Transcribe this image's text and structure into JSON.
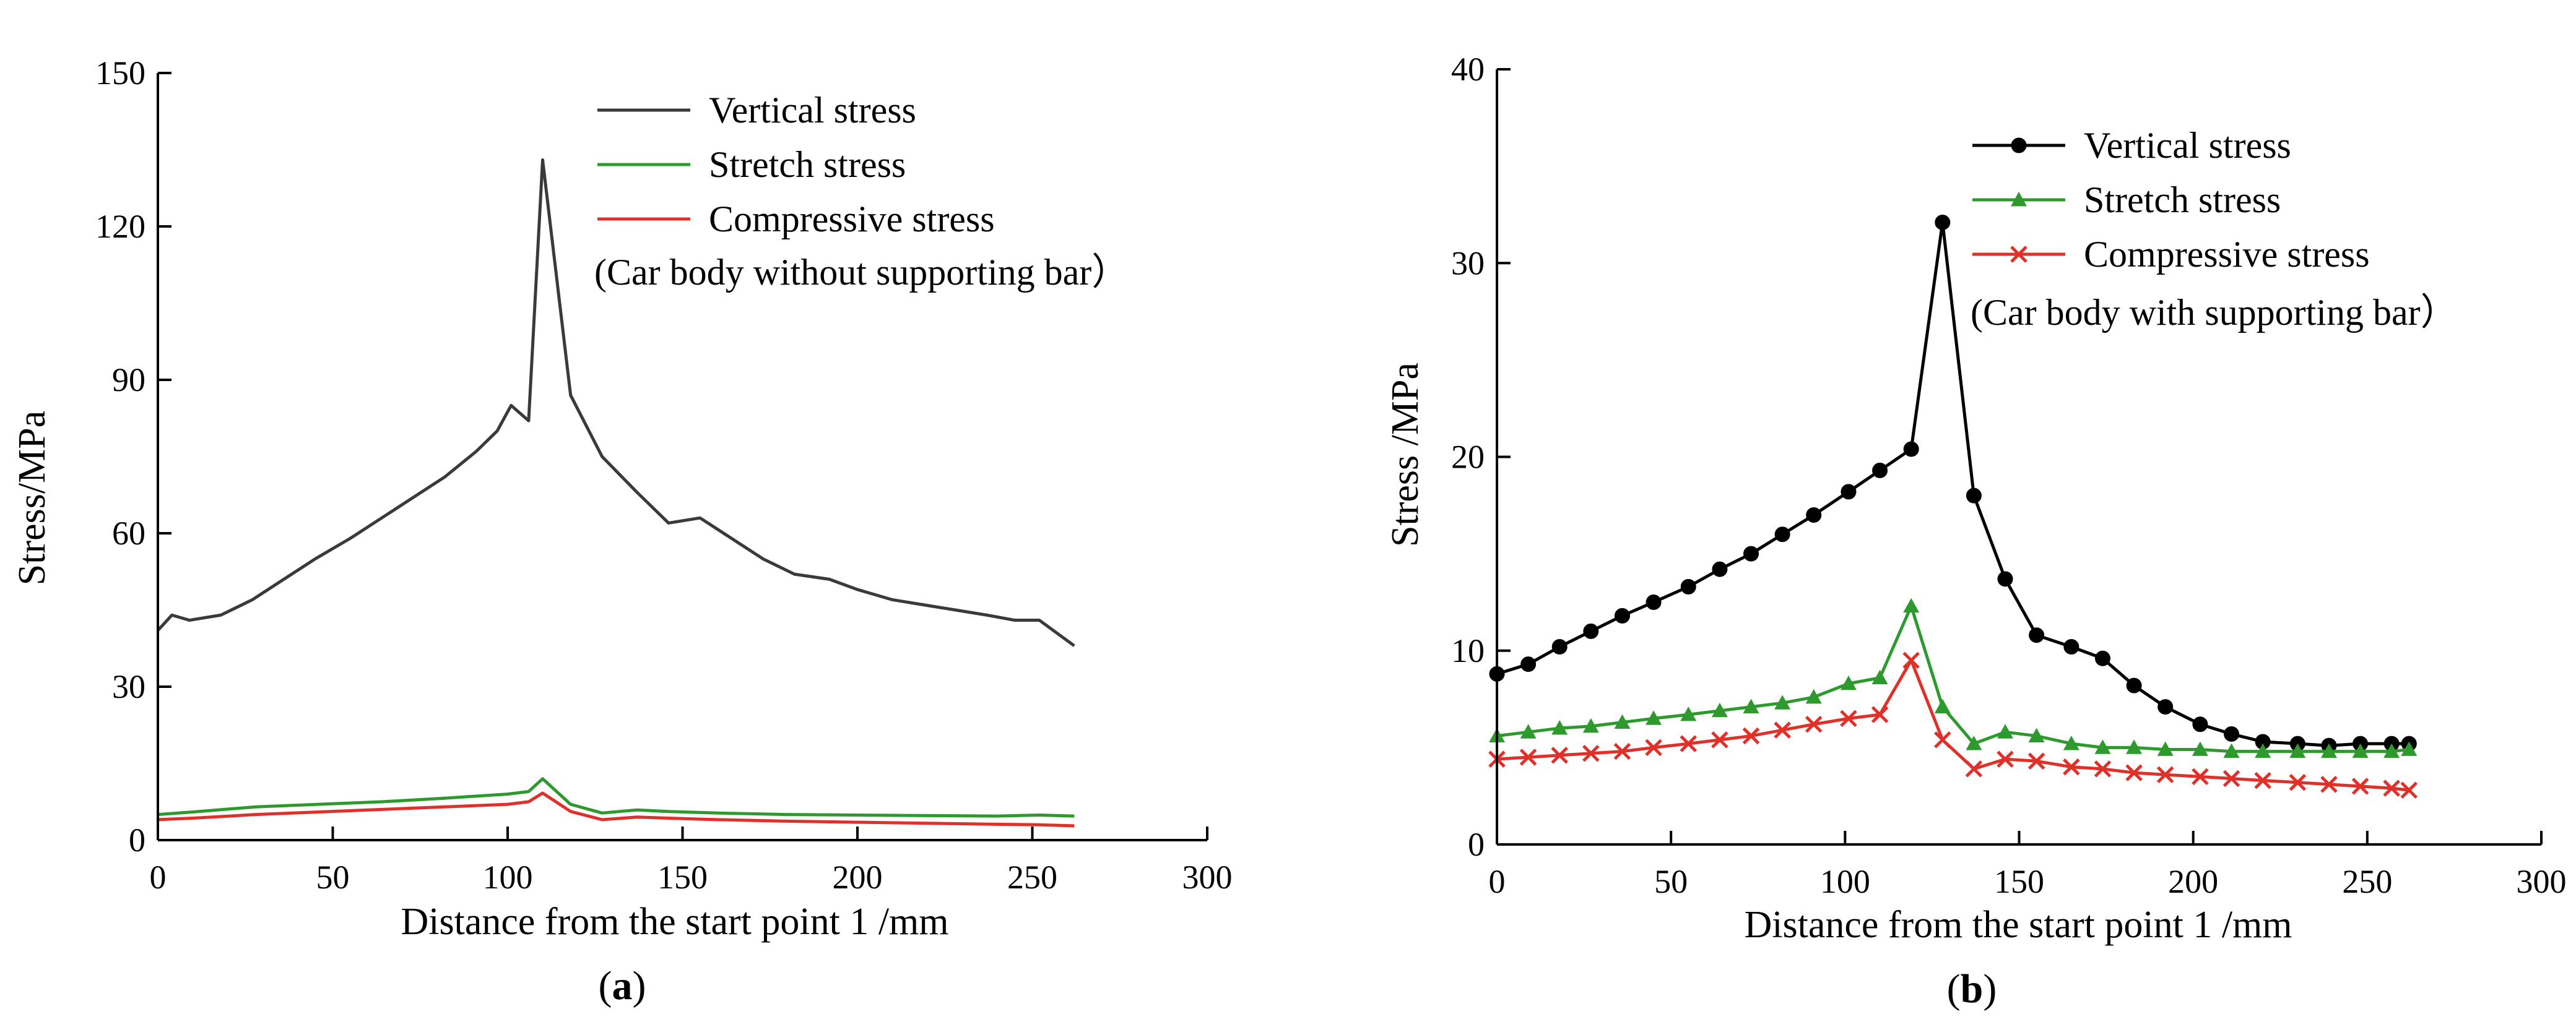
{
  "chart_data": [
    {
      "type": "line",
      "panel_label": "a",
      "xlabel": "Distance from the start point 1 /mm",
      "ylabel": "Stress/MPa",
      "xlim": [
        0,
        300
      ],
      "ylim": [
        0,
        150
      ],
      "xticks": [
        0,
        50,
        100,
        150,
        200,
        250,
        300
      ],
      "yticks": [
        0,
        30,
        60,
        90,
        120,
        150
      ],
      "markers": false,
      "annotation": "(Car body without supporting bar）",
      "legend_position": "top-right",
      "series": [
        {
          "name": "Vertical stress",
          "color": "#3a3a3a",
          "x": [
            0,
            4,
            9,
            18,
            27,
            36,
            45,
            55,
            64,
            73,
            82,
            91,
            97,
            101,
            106,
            110,
            118,
            127,
            137,
            146,
            155,
            164,
            173,
            182,
            192,
            200,
            210,
            219,
            228,
            237,
            245,
            252,
            262
          ],
          "y": [
            41,
            44,
            43,
            44,
            47,
            51,
            55,
            59,
            63,
            67,
            71,
            76,
            80,
            85,
            82,
            133,
            87,
            75,
            68,
            62,
            63,
            59,
            55,
            52,
            51,
            49,
            47,
            46,
            45,
            44,
            43,
            43,
            38
          ]
        },
        {
          "name": "Stretch stress",
          "color": "#2e9a2e",
          "x": [
            0,
            10,
            28,
            46,
            64,
            82,
            100,
            106,
            110,
            118,
            127,
            137,
            146,
            160,
            180,
            200,
            220,
            240,
            252,
            262
          ],
          "y": [
            5,
            5.5,
            6.5,
            7,
            7.5,
            8.2,
            9,
            9.5,
            12,
            7,
            5.3,
            5.9,
            5.6,
            5.3,
            5,
            4.9,
            4.8,
            4.7,
            4.9,
            4.7
          ]
        },
        {
          "name": "Compressive stress",
          "color": "#e0302a",
          "x": [
            0,
            10,
            28,
            46,
            64,
            82,
            100,
            106,
            110,
            118,
            127,
            137,
            146,
            160,
            180,
            200,
            220,
            240,
            252,
            262
          ],
          "y": [
            4,
            4.3,
            5,
            5.5,
            6,
            6.5,
            7,
            7.5,
            9.2,
            5.6,
            4,
            4.5,
            4.3,
            4,
            3.7,
            3.5,
            3.3,
            3.1,
            3,
            2.8
          ]
        }
      ]
    },
    {
      "type": "line",
      "panel_label": "b",
      "xlabel": "Distance from the start point 1 /mm",
      "ylabel": "Stress /MPa",
      "xlim": [
        0,
        300
      ],
      "ylim": [
        0,
        40
      ],
      "xticks": [
        0,
        50,
        100,
        150,
        200,
        250,
        300
      ],
      "yticks": [
        0,
        10,
        20,
        30,
        40
      ],
      "markers": true,
      "annotation": "(Car body with supporting bar）",
      "legend_position": "top-right",
      "series": [
        {
          "name": "Vertical stress",
          "color": "#000000",
          "marker": "circle",
          "x": [
            0,
            9,
            18,
            27,
            36,
            45,
            55,
            64,
            73,
            82,
            91,
            101,
            110,
            119,
            128,
            137,
            146,
            155,
            165,
            174,
            183,
            192,
            202,
            211,
            220,
            230,
            239,
            248,
            257,
            262
          ],
          "y": [
            8.8,
            9.3,
            10.2,
            11,
            11.8,
            12.5,
            13.3,
            14.2,
            15,
            16,
            17,
            18.2,
            19.3,
            20.4,
            32.1,
            18,
            13.7,
            10.8,
            10.2,
            9.6,
            8.2,
            7.1,
            6.2,
            5.7,
            5.3,
            5.2,
            5.1,
            5.2,
            5.2,
            5.2
          ]
        },
        {
          "name": "Stretch stress",
          "color": "#2e9a2e",
          "marker": "triangle",
          "x": [
            0,
            9,
            18,
            27,
            36,
            45,
            55,
            64,
            73,
            82,
            91,
            101,
            110,
            119,
            128,
            137,
            146,
            155,
            165,
            174,
            183,
            192,
            202,
            211,
            220,
            230,
            239,
            248,
            257,
            262
          ],
          "y": [
            5.6,
            5.8,
            6,
            6.1,
            6.3,
            6.5,
            6.7,
            6.9,
            7.1,
            7.3,
            7.6,
            8.3,
            8.6,
            12.3,
            7.1,
            5.2,
            5.8,
            5.6,
            5.2,
            5,
            5,
            4.9,
            4.9,
            4.8,
            4.8,
            4.8,
            4.8,
            4.8,
            4.8,
            4.9
          ]
        },
        {
          "name": "Compressive stress",
          "color": "#e0302a",
          "marker": "x",
          "x": [
            0,
            9,
            18,
            27,
            36,
            45,
            55,
            64,
            73,
            82,
            91,
            101,
            110,
            119,
            128,
            137,
            146,
            155,
            165,
            174,
            183,
            192,
            202,
            211,
            220,
            230,
            239,
            248,
            257,
            262
          ],
          "y": [
            4.4,
            4.5,
            4.6,
            4.7,
            4.8,
            5,
            5.2,
            5.4,
            5.6,
            5.9,
            6.2,
            6.5,
            6.7,
            9.5,
            5.4,
            3.9,
            4.4,
            4.3,
            4,
            3.9,
            3.7,
            3.6,
            3.5,
            3.4,
            3.3,
            3.2,
            3.1,
            3,
            2.9,
            2.8
          ]
        }
      ]
    }
  ]
}
